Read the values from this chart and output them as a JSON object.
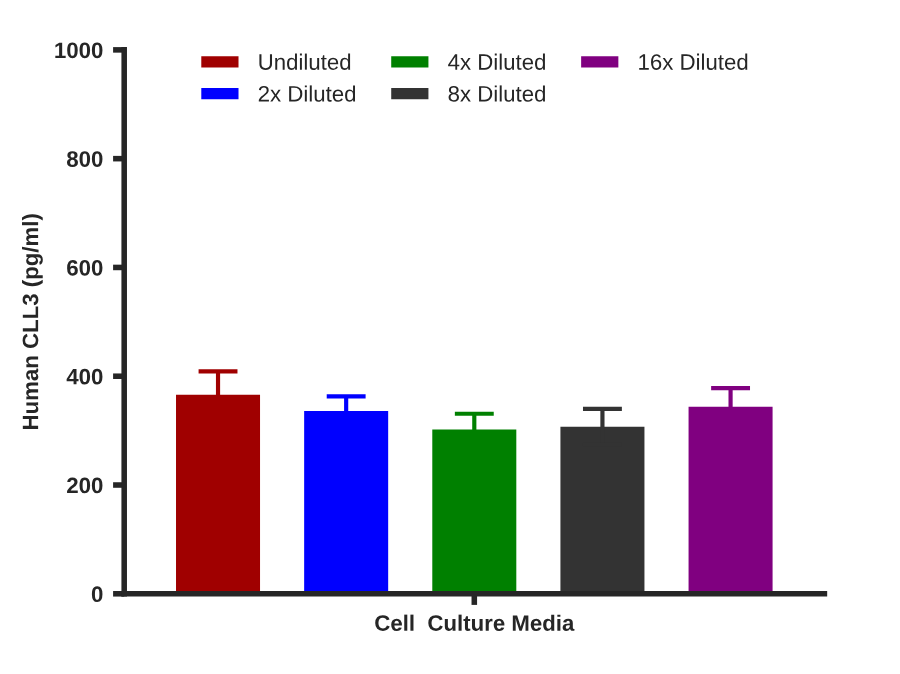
{
  "chart_data": {
    "type": "bar",
    "ylabel": "Human CLL3 (pg/ml)",
    "categories": [
      "Cell  Culture Media"
    ],
    "series": [
      {
        "name": "Undiluted",
        "color": "#a00000",
        "values": [
          366
        ],
        "errors": [
          43
        ]
      },
      {
        "name": "2x Diluted",
        "color": "#0000ff",
        "values": [
          336
        ],
        "errors": [
          27
        ]
      },
      {
        "name": "4x Diluted",
        "color": "#008000",
        "values": [
          302
        ],
        "errors": [
          29
        ]
      },
      {
        "name": "8x Diluted",
        "color": "#333333",
        "values": [
          307
        ],
        "errors": [
          33
        ]
      },
      {
        "name": "16x Diluted",
        "color": "#800080",
        "values": [
          344
        ],
        "errors": [
          34
        ]
      }
    ],
    "ylim": [
      0,
      1000
    ],
    "yticks": [
      0,
      200,
      400,
      600,
      800,
      1000
    ],
    "grid": false,
    "legend": "top"
  }
}
